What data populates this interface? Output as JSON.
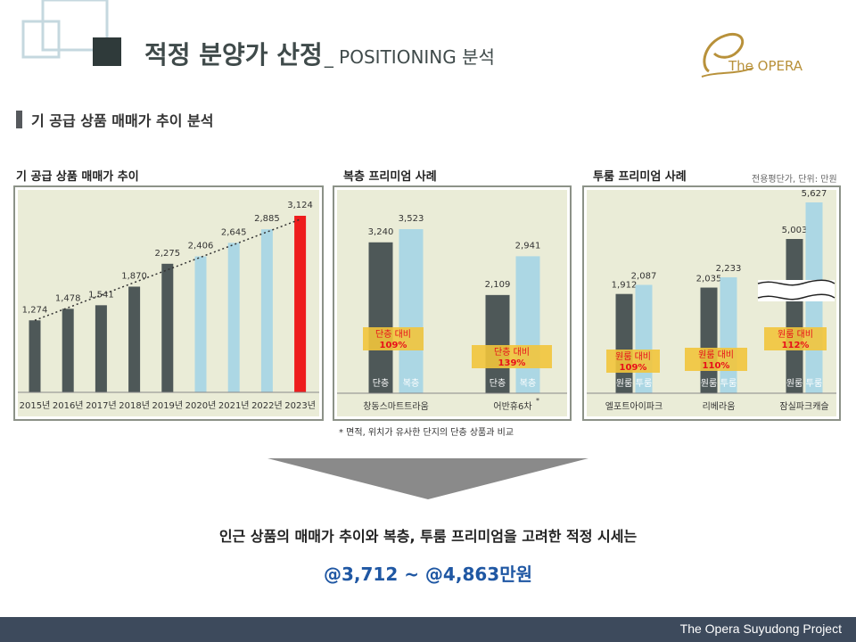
{
  "header": {
    "title": "적정 분양가 산정",
    "subtitle": "_ POSITIONING 분석",
    "logo_text": "The OPERA"
  },
  "section": {
    "title": "기 공급 상품 매매가 추이 분석"
  },
  "unit_note": "전용평단가, 단위: 만원",
  "colors": {
    "dark": "#4e5858",
    "light": "#acd7e4",
    "highlight": "#ee1c1c",
    "panel_bg": "#eaecd7",
    "panel_border": "#8c9288",
    "badge": "#f2c53c",
    "badge_text": "#e8101a",
    "price_text": "#1f57a3"
  },
  "chart_data": [
    {
      "type": "bar",
      "title": "기 공급 상품 매매가 추이",
      "categories": [
        "2015년",
        "2016년",
        "2017년",
        "2018년",
        "2019년",
        "2020년",
        "2021년",
        "2022년",
        "2023년"
      ],
      "values": [
        1274,
        1478,
        1541,
        1870,
        2275,
        2406,
        2645,
        2885,
        3124
      ],
      "value_labels": [
        "1,274",
        "1,478",
        "1,541",
        "1,870",
        "2,275",
        "2,406",
        "2,645",
        "2,885",
        "3,124"
      ],
      "bar_colors": [
        "dark",
        "dark",
        "dark",
        "dark",
        "dark",
        "light",
        "light",
        "light",
        "highlight"
      ],
      "trendline": true,
      "ylim": [
        0,
        3400
      ]
    },
    {
      "type": "bar",
      "title": "복층 프리미엄 사례",
      "groups": [
        {
          "name": "창동스마트트라움",
          "series": [
            {
              "label": "단층",
              "value": 3240,
              "value_label": "3,240"
            },
            {
              "label": "복층",
              "value": 3523,
              "value_label": "3,523"
            }
          ],
          "badge": [
            "단층 대비",
            "109%"
          ]
        },
        {
          "name": "어반휴6차",
          "name_mark": "*",
          "series": [
            {
              "label": "단층",
              "value": 2109,
              "value_label": "2,109"
            },
            {
              "label": "복층",
              "value": 2941,
              "value_label": "2,941"
            }
          ],
          "badge": [
            "단층 대비",
            "139%"
          ]
        }
      ],
      "ylim": [
        0,
        4000
      ]
    },
    {
      "type": "bar",
      "title": "투룸 프리미엄 사례",
      "groups": [
        {
          "name": "엘포트아이파크",
          "series": [
            {
              "label": "원룸",
              "value": 1912,
              "value_label": "1,912"
            },
            {
              "label": "투룸",
              "value": 2087,
              "value_label": "2,087"
            }
          ],
          "badge": [
            "원룸 대비",
            "109%"
          ]
        },
        {
          "name": "리베라움",
          "series": [
            {
              "label": "원룸",
              "value": 2035,
              "value_label": "2,035"
            },
            {
              "label": "투룸",
              "value": 2233,
              "value_label": "2,233"
            }
          ],
          "badge": [
            "원룸 대비",
            "110%"
          ]
        },
        {
          "name": "잠실파크캐슬",
          "series": [
            {
              "label": "원룸",
              "value": 5003,
              "value_label": "5,003"
            },
            {
              "label": "투룸",
              "value": 5627,
              "value_label": "5,627"
            }
          ],
          "badge": [
            "원룸 대비",
            "112%"
          ]
        }
      ],
      "axis_break": true
    }
  ],
  "footnote": "* 면적, 위치가 유사한 단지의 단층 상품과 비교",
  "conclusion": "인근 상품의 매매가 추이와 복층, 투룸 프리미엄을 고려한 적정 시세는",
  "price_range": "@3,712 ~ @4,863만원",
  "footer": "The Opera Suyudong Project"
}
